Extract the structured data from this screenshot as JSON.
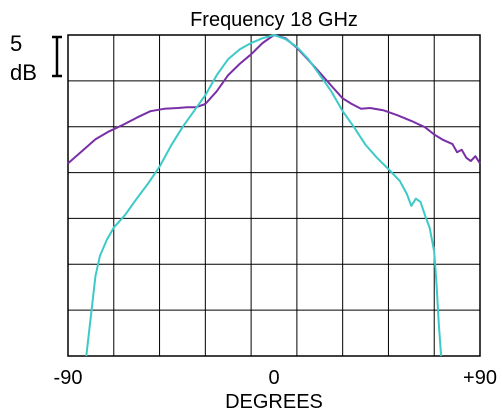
{
  "chart_data": {
    "type": "line",
    "title": "Frequency 18 GHz",
    "xlabel": "DEGREES",
    "ylabel": "",
    "xlim": [
      -90,
      90
    ],
    "ylim": [
      -40,
      0
    ],
    "x_ticks": [
      -90,
      0,
      90
    ],
    "x_tick_labels": [
      "-90",
      "0",
      "+90"
    ],
    "scale_bar": {
      "value": "5",
      "unit": "dB"
    },
    "grid": true,
    "legend": "none",
    "series": [
      {
        "color": "#7a2fa6",
        "x": [
          -90,
          -84,
          -78,
          -72,
          -66,
          -60,
          -54,
          -48,
          -42,
          -38,
          -34,
          -30,
          -25,
          -20,
          -15,
          -10,
          -5,
          0,
          5,
          10,
          15,
          20,
          25,
          30,
          34,
          38,
          42,
          48,
          54,
          60,
          66,
          70,
          74,
          78,
          80,
          82,
          84,
          86,
          88,
          90
        ],
        "y": [
          -16,
          -14.5,
          -13,
          -12,
          -11.2,
          -10.3,
          -9.5,
          -9.2,
          -9.1,
          -9,
          -9,
          -8.6,
          -7,
          -5,
          -3.6,
          -2.4,
          -1,
          0,
          -0.4,
          -1.6,
          -3.1,
          -4.7,
          -6.3,
          -7.9,
          -8.6,
          -9.2,
          -9.1,
          -9.4,
          -10,
          -10.7,
          -11.5,
          -12.4,
          -13.1,
          -13.6,
          -14.6,
          -14.3,
          -15.3,
          -15.7,
          -15.1,
          -16
        ]
      },
      {
        "color": "#3ccac8",
        "x": [
          -82,
          -80,
          -78,
          -76,
          -73,
          -70,
          -65,
          -60,
          -55,
          -50,
          -45,
          -40,
          -35,
          -30,
          -25,
          -20,
          -15,
          -10,
          -5,
          0,
          5,
          10,
          15,
          20,
          25,
          30,
          35,
          40,
          45,
          50,
          55,
          58,
          60,
          62,
          64,
          66,
          68,
          70,
          71,
          72,
          73
        ],
        "y": [
          -40,
          -35,
          -30,
          -27.5,
          -25.5,
          -24,
          -22.4,
          -20.4,
          -18.5,
          -16.4,
          -13.8,
          -11.5,
          -9.5,
          -7.5,
          -5,
          -3,
          -1.8,
          -1,
          -0.4,
          0,
          -0.5,
          -1.5,
          -3,
          -5,
          -7,
          -9.5,
          -11.5,
          -13.7,
          -15.3,
          -16.7,
          -18.2,
          -19.8,
          -21.3,
          -20.4,
          -20.8,
          -22.5,
          -24,
          -27,
          -31,
          -36,
          -40
        ]
      }
    ]
  }
}
